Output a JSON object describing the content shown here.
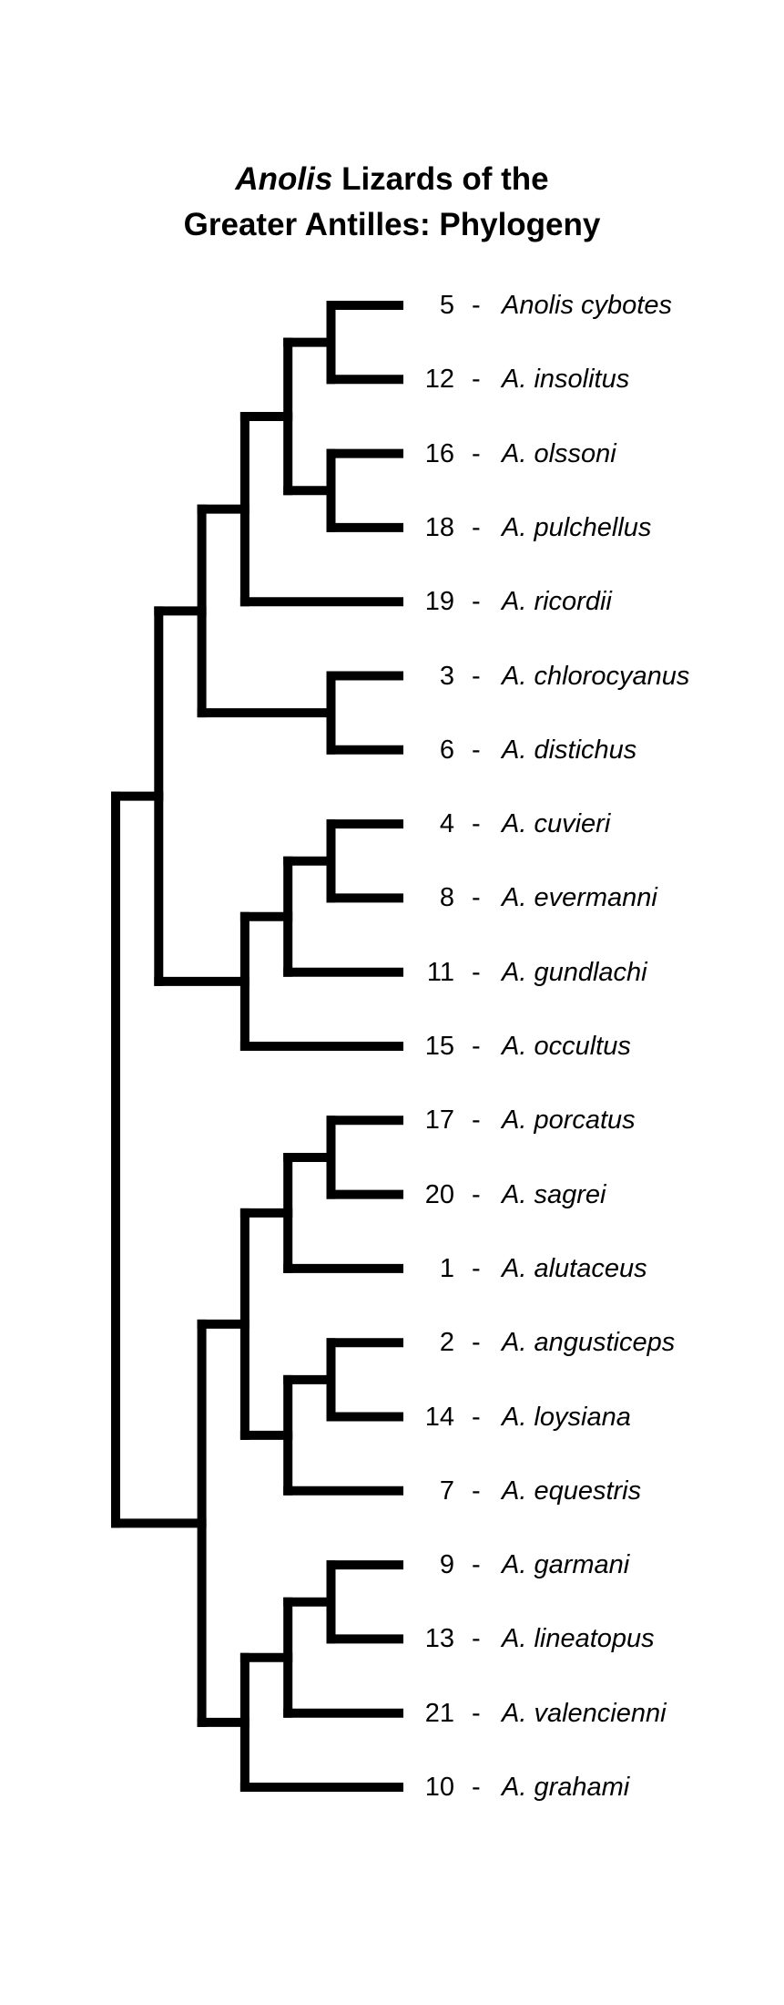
{
  "title": {
    "genus": "Anolis",
    "line1_rest": " Lizards of the",
    "line2": "Greater Antilles: Phylogeny"
  },
  "separator": "-",
  "taxa": [
    {
      "num": "5",
      "name": "Anolis cybotes"
    },
    {
      "num": "12",
      "name": "A. insolitus"
    },
    {
      "num": "16",
      "name": "A. olssoni"
    },
    {
      "num": "18",
      "name": "A. pulchellus"
    },
    {
      "num": "19",
      "name": "A. ricordii"
    },
    {
      "num": "3",
      "name": "A. chlorocyanus"
    },
    {
      "num": "6",
      "name": "A. distichus"
    },
    {
      "num": "4",
      "name": "A. cuvieri"
    },
    {
      "num": "8",
      "name": "A. evermanni"
    },
    {
      "num": "11",
      "name": "A. gundlachi"
    },
    {
      "num": "15",
      "name": "A. occultus"
    },
    {
      "num": "17",
      "name": "A. porcatus"
    },
    {
      "num": "20",
      "name": "A. sagrei"
    },
    {
      "num": "1",
      "name": "A. alutaceus"
    },
    {
      "num": "2",
      "name": "A. angusticeps"
    },
    {
      "num": "14",
      "name": "A. loysiana"
    },
    {
      "num": "7",
      "name": "A. equestris"
    },
    {
      "num": "9",
      "name": "A. garmani"
    },
    {
      "num": "13",
      "name": "A. lineatopus"
    },
    {
      "num": "21",
      "name": "A. valencienni"
    },
    {
      "num": "10",
      "name": "A. grahami"
    }
  ],
  "tree": [
    [
      [
        [
          [
            [
              "Anolis cybotes",
              "A. insolitus"
            ],
            [
              "A. olssoni",
              "A. pulchellus"
            ]
          ],
          "A. ricordii"
        ],
        [
          "A. chlorocyanus",
          "A. distichus"
        ]
      ],
      [
        [
          [
            "A. cuvieri",
            "A. evermanni"
          ],
          "A. gundlachi"
        ],
        "A. occultus"
      ]
    ],
    [
      [
        [
          [
            "A. porcatus",
            "A. sagrei"
          ],
          "A. alutaceus"
        ],
        [
          [
            "A. angusticeps",
            "A. loysiana"
          ],
          "A. equestris"
        ]
      ],
      [
        [
          [
            "A. garmani",
            "A. lineatopus"
          ],
          "A. valencienni"
        ],
        "A. grahami"
      ]
    ]
  ],
  "style": {
    "line_color": "#000000",
    "background": "#ffffff"
  }
}
